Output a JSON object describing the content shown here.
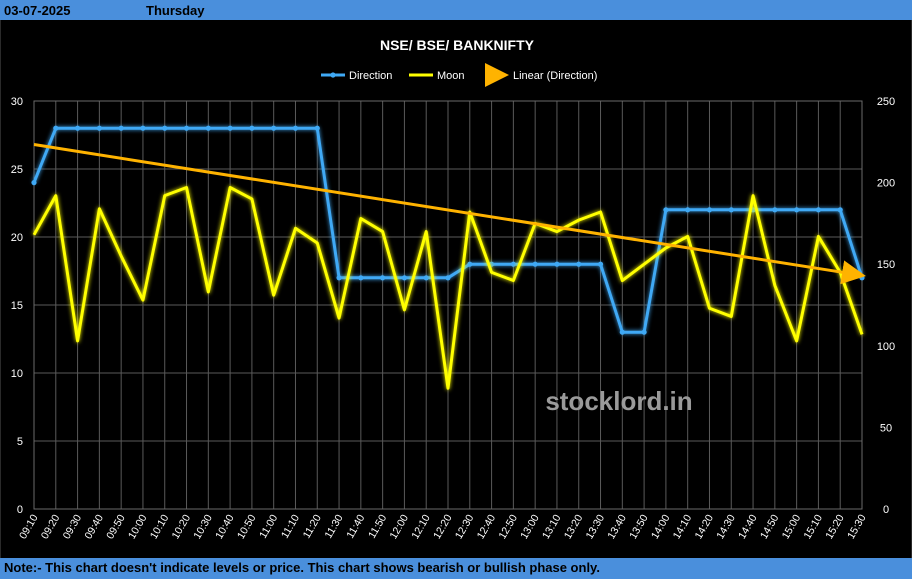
{
  "header": {
    "date": "03-07-2025",
    "day": "Thursday"
  },
  "footer": {
    "note": "Note:- This chart doesn't indicate levels or price. This chart shows bearish or bullish phase only."
  },
  "watermark": "stocklord.in",
  "colors": {
    "header_bg": "#4a8fdc",
    "direction": "#3fa9f5",
    "moon": "#ffff00",
    "trend": "#ffb300",
    "grid": "#5a5a5a",
    "text": "#ffffff",
    "background": "#000000"
  },
  "chart_data": {
    "type": "line",
    "title": "NSE/ BSE/ BANKNIFTY",
    "categories": [
      "09:10",
      "09:20",
      "09:30",
      "09:40",
      "09:50",
      "10:00",
      "10:10",
      "10:20",
      "10:30",
      "10:40",
      "10:50",
      "11:00",
      "11:10",
      "11:20",
      "11:30",
      "11:40",
      "11:50",
      "12:00",
      "12:10",
      "12:20",
      "12:30",
      "12:40",
      "12:50",
      "13:00",
      "13:10",
      "13:20",
      "13:30",
      "13:40",
      "13:50",
      "14:00",
      "14:10",
      "14:20",
      "14:30",
      "14:40",
      "14:50",
      "15:00",
      "15:10",
      "15:20",
      "15:30"
    ],
    "y_left": {
      "range": [
        0,
        30
      ],
      "ticks": [
        0,
        5,
        10,
        15,
        20,
        25,
        30
      ]
    },
    "y_right": {
      "range": [
        0,
        250
      ],
      "ticks": [
        0,
        50,
        100,
        150,
        200,
        250
      ]
    },
    "grid": true,
    "legend_position": "top-center",
    "series": [
      {
        "name": "Direction",
        "axis": "left",
        "color": "#3fa9f5",
        "values": [
          24,
          28,
          28,
          28,
          28,
          28,
          28,
          28,
          28,
          28,
          28,
          28,
          28,
          28,
          17,
          17,
          17,
          17,
          17,
          17,
          18,
          18,
          18,
          18,
          18,
          18,
          18,
          13,
          13,
          22,
          22,
          22,
          22,
          22,
          22,
          22,
          22,
          22,
          17
        ]
      },
      {
        "name": "Moon",
        "axis": "right",
        "color": "#ffff00",
        "values": [
          168,
          192,
          103,
          184,
          155,
          128,
          192,
          197,
          133,
          197,
          190,
          131,
          172,
          163,
          117,
          178,
          170,
          122,
          170,
          74,
          182,
          145,
          140,
          175,
          170,
          177,
          182,
          140,
          150,
          160,
          167,
          123,
          118,
          192,
          137,
          103,
          167,
          145,
          107
        ]
      },
      {
        "name": "Linear (Direction)",
        "axis": "left",
        "color": "#ffb300",
        "trendline": true,
        "start": [
          0,
          26.8
        ],
        "end": [
          38,
          17.2
        ]
      }
    ]
  }
}
